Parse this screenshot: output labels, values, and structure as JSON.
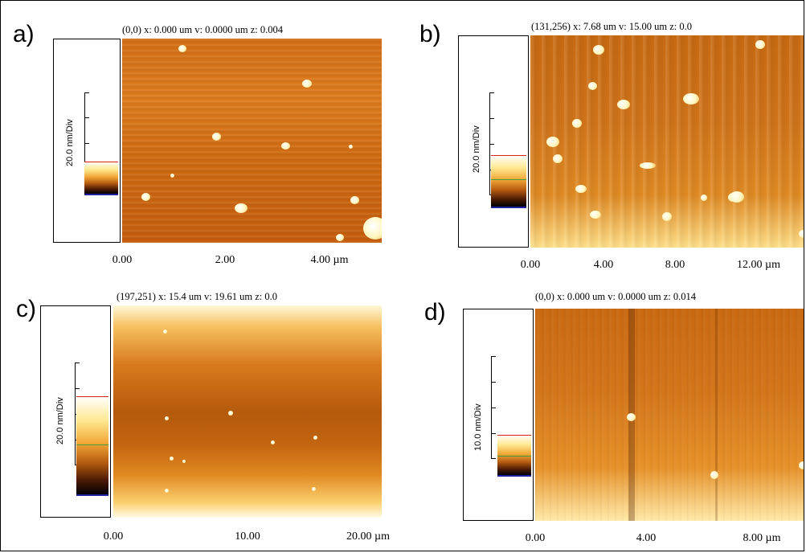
{
  "figure": {
    "panels": [
      {
        "label": "a)",
        "readout": "(0,0)  x: 0.000 um   v: 0.0000 um  z: 0.004",
        "scale_label": "20.0 nm/Div",
        "axis_ticks": [
          "0.00",
          "2.00",
          "4.00 µm"
        ]
      },
      {
        "label": "b)",
        "readout": "(131,256)  x: 7.68 um   v: 15.00 um  z: 0.0",
        "scale_label": "20.0 nm/Div",
        "axis_ticks": [
          "0.00",
          "4.00",
          "8.00",
          "12.00 µm"
        ]
      },
      {
        "label": "c)",
        "readout": "(197,251)  x: 15.4 um   v: 19.61 um  z: 0.0",
        "scale_label": "20.0 nm/Div",
        "axis_ticks": [
          "0.00",
          "10.00",
          "20.00 µm"
        ]
      },
      {
        "label": "d)",
        "readout": "(0,0)  x: 0.000 um   v: 0.0000 um  z: 0.014",
        "scale_label": "10.0 nm/Div",
        "axis_ticks": [
          "0.00",
          "4.00",
          "8.00 µm"
        ]
      }
    ],
    "colors": {
      "afm_dark": "#4a1a04",
      "afm_mid": "#d0741a",
      "afm_bright": "#fffbe8",
      "scale_top_marker": "#e02020",
      "scale_bottom_marker": "#2020a0"
    }
  }
}
